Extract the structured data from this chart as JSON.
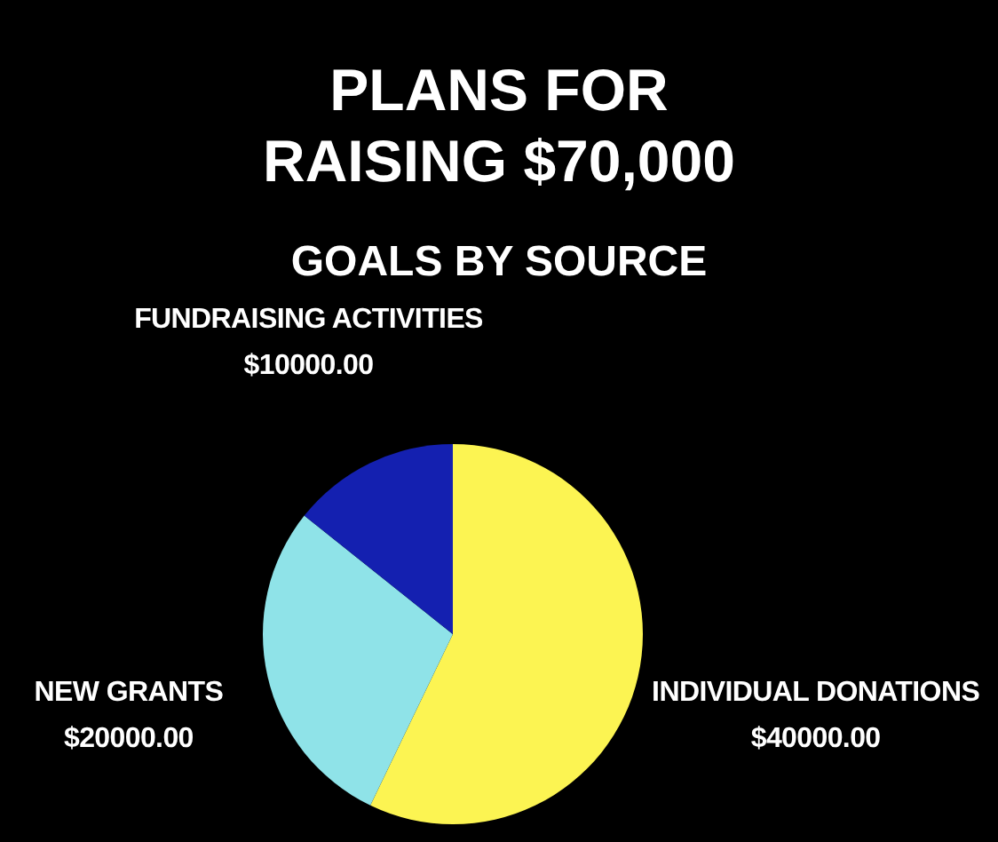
{
  "chart_data": {
    "type": "pie",
    "title": "PLANS FOR\nRAISING $70,000",
    "subtitle": "GOALS BY SOURCE",
    "categories": [
      "INDIVIDUAL DONATIONS",
      "NEW GRANTS",
      "FUNDRAISING ACTIVITIES"
    ],
    "values": [
      40000,
      20000,
      10000
    ],
    "value_labels": [
      "$40000.00",
      "$20000.00",
      "$10000.00"
    ],
    "colors": [
      "#fcf452",
      "#8fe3e8",
      "#1420b0"
    ]
  }
}
